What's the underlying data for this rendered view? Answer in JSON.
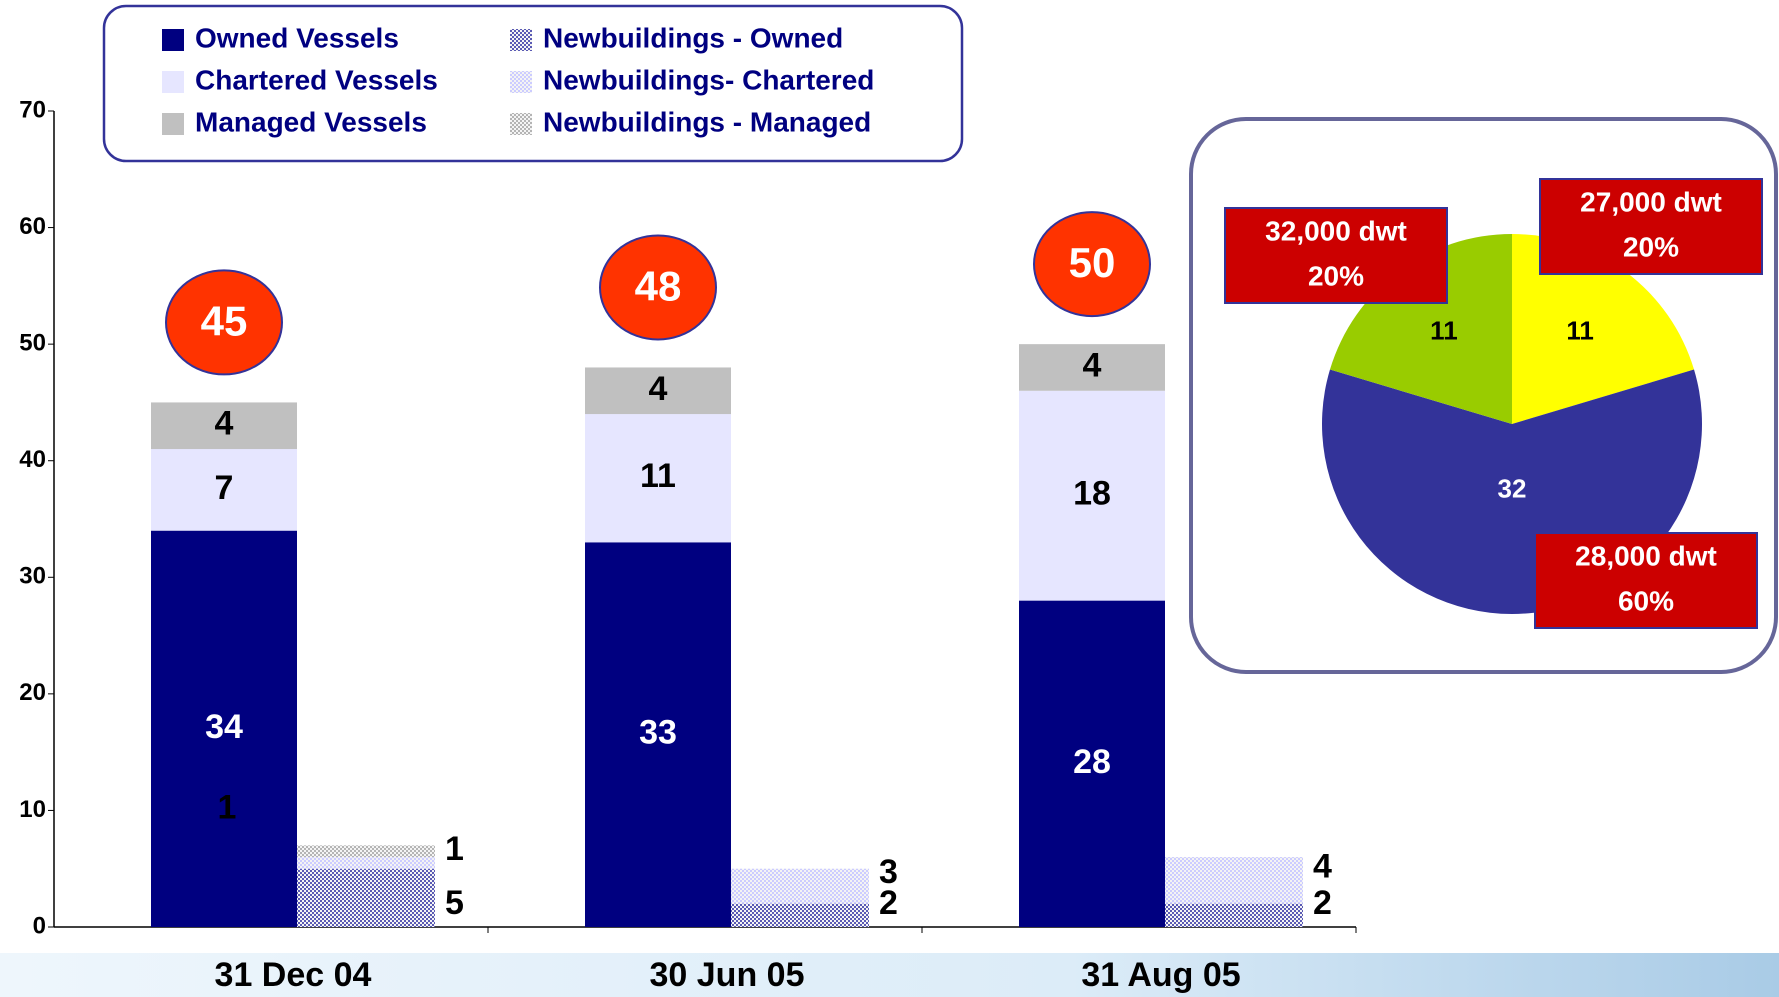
{
  "chart_data": [
    {
      "type": "bar",
      "categories": [
        "31 Dec 04",
        "30 Jun 05",
        "31 Aug 05"
      ],
      "ylim": [
        0,
        70
      ],
      "yticks": [
        0,
        10,
        20,
        30,
        40,
        50,
        60,
        70
      ],
      "series": [
        {
          "name": "Owned Vessels",
          "color": "#000080",
          "values": [
            34,
            33,
            28
          ]
        },
        {
          "name": "Chartered Vessels",
          "color": "#e6e6ff",
          "values": [
            7,
            11,
            18
          ]
        },
        {
          "name": "Managed Vessels",
          "color": "#c0c0c0",
          "values": [
            4,
            4,
            4
          ]
        },
        {
          "name": "Newbuildings - Owned",
          "color": "#5a5ab4",
          "values": [
            5,
            2,
            2
          ]
        },
        {
          "name": "Newbuildings- Chartered",
          "color": "#ccccff",
          "values": [
            1,
            3,
            4
          ]
        },
        {
          "name": "Newbuildings - Managed",
          "color": "#b4b4b4",
          "values": [
            1,
            null,
            null
          ]
        }
      ],
      "totals": [
        45,
        48,
        50
      ]
    },
    {
      "type": "pie",
      "categories": [
        "27,000 dwt",
        "28,000 dwt",
        "32,000 dwt"
      ],
      "values": [
        11,
        32,
        11
      ],
      "shares": [
        {
          "value": 20,
          "label": "20%"
        },
        {
          "value": 60,
          "label": "60%"
        },
        {
          "value": 20,
          "label": "20%"
        }
      ],
      "colors": [
        "#ffff00",
        "#333399",
        "#99cc00"
      ]
    }
  ]
}
